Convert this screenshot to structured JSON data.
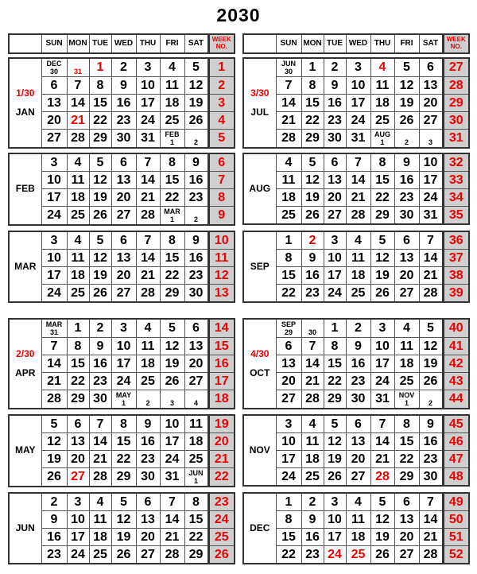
{
  "title": "2030",
  "header": {
    "days": [
      "SUN",
      "MON",
      "TUE",
      "WED",
      "THU",
      "FRI",
      "SAT"
    ],
    "week_label": "WEEK\nNO."
  },
  "colors": {
    "red": "#e00000",
    "week_bg": "#cfcfcf"
  },
  "months": [
    {
      "name": "JAN",
      "quarter": "1/30",
      "weeks": [
        1,
        2,
        3,
        4,
        5
      ],
      "rows": [
        [
          {
            "t": "DEC\n30",
            "small": true
          },
          {
            "t": "31",
            "small": true,
            "red": true
          },
          {
            "t": "1",
            "red": true
          },
          "2",
          "3",
          "4",
          "5"
        ],
        [
          "6",
          "7",
          "8",
          "9",
          "10",
          "11",
          "12"
        ],
        [
          "13",
          "14",
          "15",
          "16",
          "17",
          "18",
          "19"
        ],
        [
          "20",
          {
            "t": "21",
            "red": true
          },
          "22",
          "23",
          "24",
          "25",
          "26"
        ],
        [
          "27",
          "28",
          "29",
          "30",
          "31",
          {
            "t": "FEB\n1",
            "small": true
          },
          {
            "t": "2",
            "small": true
          }
        ]
      ]
    },
    {
      "name": "FEB",
      "weeks": [
        6,
        7,
        8,
        9
      ],
      "rows": [
        [
          "3",
          "4",
          "5",
          "6",
          "7",
          "8",
          "9"
        ],
        [
          "10",
          "11",
          "12",
          "13",
          "14",
          "15",
          "16"
        ],
        [
          "17",
          "18",
          "19",
          "20",
          "21",
          "22",
          "23"
        ],
        [
          "24",
          "25",
          "26",
          "27",
          "28",
          {
            "t": "MAR\n1",
            "small": true
          },
          {
            "t": "2",
            "small": true
          }
        ]
      ]
    },
    {
      "name": "MAR",
      "weeks": [
        10,
        11,
        12,
        13
      ],
      "rows": [
        [
          "3",
          "4",
          "5",
          "6",
          "7",
          "8",
          "9"
        ],
        [
          "10",
          "11",
          "12",
          "13",
          "14",
          "15",
          "16"
        ],
        [
          "17",
          "18",
          "19",
          "20",
          "21",
          "22",
          "23"
        ],
        [
          "24",
          "25",
          "26",
          "27",
          "28",
          "29",
          "30"
        ]
      ]
    },
    {
      "name": "APR",
      "quarter": "2/30",
      "weeks": [
        14,
        15,
        16,
        17,
        18
      ],
      "rows": [
        [
          {
            "t": "MAR\n31",
            "small": true
          },
          "1",
          "2",
          "3",
          "4",
          "5",
          "6"
        ],
        [
          "7",
          "8",
          "9",
          "10",
          "11",
          "12",
          "13"
        ],
        [
          "14",
          "15",
          "16",
          "17",
          "18",
          "19",
          "20"
        ],
        [
          "21",
          "22",
          "23",
          "24",
          "25",
          "26",
          "27"
        ],
        [
          "28",
          "29",
          "30",
          {
            "t": "MAY\n1",
            "small": true
          },
          {
            "t": "2",
            "small": true
          },
          {
            "t": "3",
            "small": true
          },
          {
            "t": "4",
            "small": true
          }
        ]
      ]
    },
    {
      "name": "MAY",
      "weeks": [
        19,
        20,
        21,
        22
      ],
      "rows": [
        [
          "5",
          "6",
          "7",
          "8",
          "9",
          "10",
          "11"
        ],
        [
          "12",
          "13",
          "14",
          "15",
          "16",
          "17",
          "18"
        ],
        [
          "19",
          "20",
          "21",
          "22",
          "23",
          "24",
          "25"
        ],
        [
          "26",
          {
            "t": "27",
            "red": true
          },
          "28",
          "29",
          "30",
          "31",
          {
            "t": "JUN\n1",
            "small": true
          }
        ]
      ]
    },
    {
      "name": "JUN",
      "weeks": [
        23,
        24,
        25,
        26
      ],
      "rows": [
        [
          "2",
          "3",
          "4",
          "5",
          "6",
          "7",
          "8"
        ],
        [
          "9",
          "10",
          "11",
          "12",
          "13",
          "14",
          "15"
        ],
        [
          "16",
          "17",
          "18",
          "19",
          "20",
          "21",
          "22"
        ],
        [
          "23",
          "24",
          "25",
          "26",
          "27",
          "28",
          "29"
        ]
      ]
    },
    {
      "name": "JUL",
      "quarter": "3/30",
      "weeks": [
        27,
        28,
        29,
        30,
        31
      ],
      "rows": [
        [
          {
            "t": "JUN\n30",
            "small": true
          },
          "1",
          "2",
          "3",
          {
            "t": "4",
            "red": true
          },
          "5",
          "6"
        ],
        [
          "7",
          "8",
          "9",
          "10",
          "11",
          "12",
          "13"
        ],
        [
          "14",
          "15",
          "16",
          "17",
          "18",
          "19",
          "20"
        ],
        [
          "21",
          "22",
          "23",
          "24",
          "25",
          "26",
          "27"
        ],
        [
          "28",
          "29",
          "30",
          "31",
          {
            "t": "AUG\n1",
            "small": true
          },
          {
            "t": "2",
            "small": true
          },
          {
            "t": "3",
            "small": true
          }
        ]
      ]
    },
    {
      "name": "AUG",
      "weeks": [
        32,
        33,
        34,
        35
      ],
      "rows": [
        [
          "4",
          "5",
          "6",
          "7",
          "8",
          "9",
          "10"
        ],
        [
          "11",
          "12",
          "13",
          "14",
          "15",
          "16",
          "17"
        ],
        [
          "18",
          "19",
          "20",
          "21",
          "22",
          "23",
          "24"
        ],
        [
          "25",
          "26",
          "27",
          "28",
          "29",
          "30",
          "31"
        ]
      ]
    },
    {
      "name": "SEP",
      "weeks": [
        36,
        37,
        38,
        39
      ],
      "rows": [
        [
          "1",
          {
            "t": "2",
            "red": true
          },
          "3",
          "4",
          "5",
          "6",
          "7"
        ],
        [
          "8",
          "9",
          "10",
          "11",
          "12",
          "13",
          "14"
        ],
        [
          "15",
          "16",
          "17",
          "18",
          "19",
          "20",
          "21"
        ],
        [
          "22",
          "23",
          "24",
          "25",
          "26",
          "27",
          "28"
        ]
      ]
    },
    {
      "name": "OCT",
      "quarter": "4/30",
      "weeks": [
        40,
        41,
        42,
        43,
        44
      ],
      "rows": [
        [
          {
            "t": "SEP\n29",
            "small": true
          },
          {
            "t": "30",
            "small": true
          },
          "1",
          "2",
          "3",
          "4",
          "5"
        ],
        [
          "6",
          "7",
          "8",
          "9",
          "10",
          "11",
          "12"
        ],
        [
          "13",
          "14",
          "15",
          "16",
          "17",
          "18",
          "19"
        ],
        [
          "20",
          "21",
          "22",
          "23",
          "24",
          "25",
          "26"
        ],
        [
          "27",
          "28",
          "29",
          "30",
          "31",
          {
            "t": "NOV\n1",
            "small": true
          },
          {
            "t": "2",
            "small": true
          }
        ]
      ]
    },
    {
      "name": "NOV",
      "weeks": [
        45,
        46,
        47,
        48
      ],
      "rows": [
        [
          "3",
          "4",
          "5",
          "6",
          "7",
          "8",
          "9"
        ],
        [
          "10",
          "11",
          "12",
          "13",
          "14",
          "15",
          "16"
        ],
        [
          "17",
          "18",
          "19",
          "20",
          "21",
          "22",
          "23"
        ],
        [
          "24",
          "25",
          "26",
          "27",
          {
            "t": "28",
            "red": true
          },
          "29",
          "30"
        ]
      ]
    },
    {
      "name": "DEC",
      "weeks": [
        49,
        50,
        51,
        52
      ],
      "rows": [
        [
          "1",
          "2",
          "3",
          "4",
          "5",
          "6",
          "7"
        ],
        [
          "8",
          "9",
          "10",
          "11",
          "12",
          "13",
          "14"
        ],
        [
          "15",
          "16",
          "17",
          "18",
          "19",
          "20",
          "21"
        ],
        [
          "22",
          "23",
          {
            "t": "24",
            "red": true
          },
          {
            "t": "25",
            "red": true
          },
          "26",
          "27",
          "28"
        ]
      ]
    }
  ]
}
